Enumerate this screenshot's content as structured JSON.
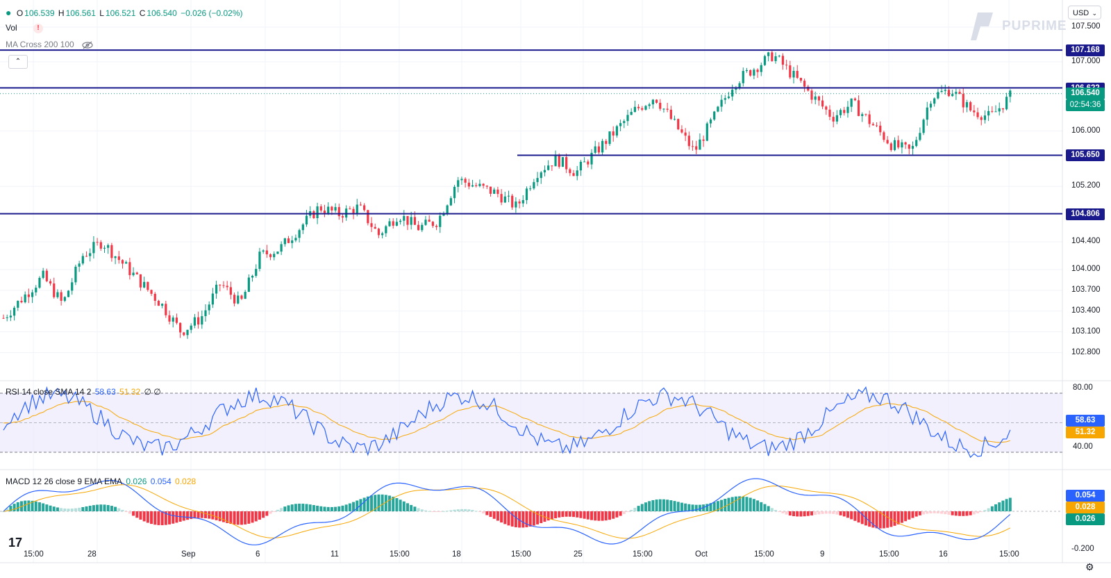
{
  "legend": {
    "o_label": "O",
    "o": "106.539",
    "h_label": "H",
    "h": "106.561",
    "l_label": "L",
    "l": "106.521",
    "c_label": "C",
    "c": "106.540",
    "change": "−0.026 (−0.02%)",
    "vol": "Vol",
    "vol_badge": "!",
    "ma_cross": "MA Cross 200 100"
  },
  "currency": "USD",
  "logo_text": "PUPRIME",
  "collapse_glyph": "⌃",
  "tv_logo": "17",
  "price_axis": [
    "107.500",
    "107.000",
    "106.000",
    "105.200",
    "104.400",
    "104.000",
    "103.700",
    "103.400",
    "103.100",
    "102.800"
  ],
  "levels": [
    {
      "value": "107.168",
      "price": 107.168,
      "x_start": "left"
    },
    {
      "value": "106.622",
      "price": 106.622,
      "x_start": "left"
    },
    {
      "value": "105.650",
      "price": 105.65,
      "x_start": "mid"
    },
    {
      "value": "104.806",
      "price": 104.806,
      "x_start": "left"
    }
  ],
  "last_price": {
    "value": "106.540",
    "countdown": "02:54:36",
    "color": "#089981"
  },
  "rsi": {
    "legend": "RSI 14 close SMA 14 2",
    "rsi_val": "58.63",
    "sma_val": "51.32",
    "extra": "∅ ∅",
    "axis": [
      "80.00",
      "40.00"
    ],
    "rsi_color": "#2962ff",
    "sma_color": "#f7a600"
  },
  "macd": {
    "legend": "MACD 12 26 close 9 EMA EMA",
    "hist": "0.026",
    "macd": "0.054",
    "signal": "0.028",
    "axis": [
      "-0.200"
    ],
    "macd_color": "#2962ff",
    "signal_color": "#f7a600",
    "hist_color": "#089981"
  },
  "time_axis": [
    {
      "label": "15:00"
    },
    {
      "label": "28"
    },
    {
      "label": "Sep"
    },
    {
      "label": "6"
    },
    {
      "label": "11"
    },
    {
      "label": "15:00"
    },
    {
      "label": "18"
    },
    {
      "label": "15:00"
    },
    {
      "label": "25"
    },
    {
      "label": "15:00"
    },
    {
      "label": "Oct"
    },
    {
      "label": "15:00"
    },
    {
      "label": "9"
    },
    {
      "label": "15:00"
    },
    {
      "label": "16"
    },
    {
      "label": "15:00"
    }
  ],
  "chart_data": {
    "type": "candlestick",
    "symbol_price_range": [
      102.6,
      107.65
    ],
    "series_approx_close": [
      103.3,
      103.6,
      103.9,
      103.5,
      104.2,
      104.4,
      104.1,
      103.8,
      103.5,
      103.1,
      103.3,
      103.8,
      103.5,
      104.2,
      104.3,
      104.6,
      104.9,
      104.8,
      104.9,
      104.5,
      104.8,
      104.6,
      104.7,
      105.3,
      105.2,
      105.1,
      104.9,
      105.4,
      105.6,
      105.4,
      105.7,
      106.0,
      106.3,
      106.5,
      106.1,
      105.7,
      106.2,
      106.7,
      106.9,
      107.1,
      106.8,
      106.5,
      106.2,
      106.4,
      106.1,
      105.8,
      105.7,
      106.5,
      106.6,
      106.3,
      106.2,
      106.5
    ]
  }
}
